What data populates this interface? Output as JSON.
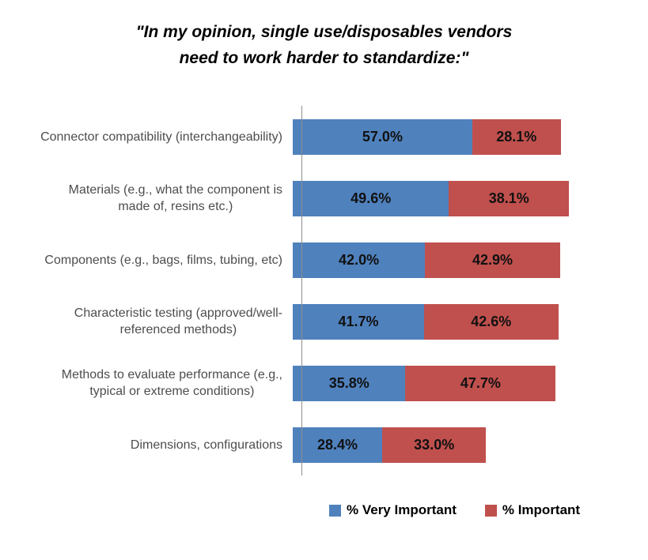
{
  "title_display": {
    "line1": "\"In my opinion, single use/disposables vendors",
    "line2": "need to work harder to standardize:\""
  },
  "chart_data": {
    "type": "bar",
    "orientation": "horizontal",
    "stacked": true,
    "title": "\"In my opinion, single use/disposables vendors need to work harder to standardize:\"",
    "categories": [
      "Connector compatibility (interchangeability)",
      "Materials (e.g., what the component is made of, resins etc.)",
      "Components (e.g., bags, films, tubing, etc)",
      "Characteristic testing (approved/well-referenced methods)",
      "Methods to evaluate performance (e.g., typical or extreme conditions)",
      "Dimensions, configurations"
    ],
    "category_display": [
      "Connector compatibility (interchangeability)",
      "Materials (e.g., what the component is\nmade of, resins etc.)",
      "Components (e.g., bags, films, tubing, etc)",
      "Characteristic testing (approved/well-\nreferenced methods)",
      "Methods to evaluate performance (e.g.,\ntypical or extreme conditions)",
      "Dimensions, configurations"
    ],
    "series": [
      {
        "name": "% Very Important",
        "color": "#4F81BD",
        "values": [
          57.0,
          49.6,
          42.0,
          41.7,
          35.8,
          28.4
        ],
        "value_labels": [
          "57.0%",
          "49.6%",
          "42.0%",
          "41.7%",
          "35.8%",
          "28.4%"
        ]
      },
      {
        "name": "% Important",
        "color": "#C0504D",
        "values": [
          28.1,
          38.1,
          42.9,
          42.6,
          47.7,
          33.0
        ],
        "value_labels": [
          "28.1%",
          "38.1%",
          "42.9%",
          "42.6%",
          "47.7%",
          "33.0%"
        ]
      }
    ],
    "xlim": [
      0,
      100
    ],
    "axis_color": "#8e8e8e",
    "grid": false,
    "legend_position": "bottom"
  }
}
